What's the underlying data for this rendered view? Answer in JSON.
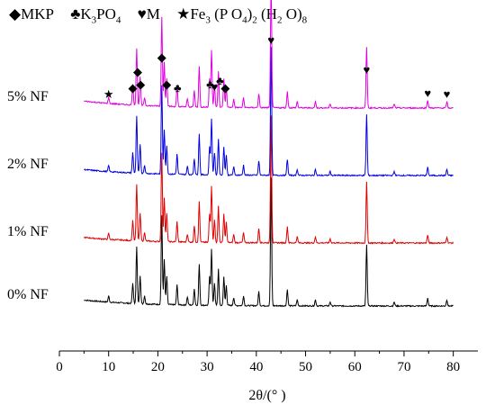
{
  "chart_data": {
    "type": "line",
    "xlabel": "2θ/(° )",
    "xlim": [
      0,
      85
    ],
    "ticks": [
      0,
      10,
      20,
      30,
      40,
      50,
      60,
      70,
      80
    ],
    "tick_labels": [
      "0",
      "10",
      "20",
      "30",
      "40",
      "50",
      "60",
      "70",
      "80"
    ],
    "legend": [
      {
        "symbol": "◆",
        "label": "MKP"
      },
      {
        "symbol": "♣",
        "label": "K3PO4"
      },
      {
        "symbol": "♥",
        "label": "M"
      },
      {
        "symbol": "★",
        "label": "Fe3 (P O4)2 (H2 O)8"
      }
    ],
    "series": [
      {
        "name": "0% NF",
        "color": "#000000",
        "baseline": 0,
        "slope_level": 3.0
      },
      {
        "name": "1% NF",
        "color": "#e00000",
        "baseline": 70,
        "slope_level": 2.8
      },
      {
        "name": "2% NF",
        "color": "#0000e0",
        "baseline": 145,
        "slope_level": 3.0
      },
      {
        "name": "5% NF",
        "color": "#e000e0",
        "baseline": 220,
        "slope_level": 3.5
      }
    ],
    "peaks": [
      {
        "x": 10.0,
        "h": 3
      },
      {
        "x": 14.9,
        "h": 10
      },
      {
        "x": 15.7,
        "h": 28
      },
      {
        "x": 16.4,
        "h": 14
      },
      {
        "x": 17.3,
        "h": 4
      },
      {
        "x": 20.8,
        "h": 44
      },
      {
        "x": 21.3,
        "h": 22
      },
      {
        "x": 21.8,
        "h": 14
      },
      {
        "x": 23.9,
        "h": 10
      },
      {
        "x": 26.0,
        "h": 4
      },
      {
        "x": 27.4,
        "h": 8
      },
      {
        "x": 28.4,
        "h": 20
      },
      {
        "x": 30.5,
        "h": 14
      },
      {
        "x": 30.9,
        "h": 28
      },
      {
        "x": 31.5,
        "h": 11
      },
      {
        "x": 32.3,
        "h": 18
      },
      {
        "x": 33.4,
        "h": 14
      },
      {
        "x": 33.9,
        "h": 10
      },
      {
        "x": 35.4,
        "h": 4
      },
      {
        "x": 37.4,
        "h": 5
      },
      {
        "x": 40.5,
        "h": 7
      },
      {
        "x": 43.0,
        "h": 63
      },
      {
        "x": 46.3,
        "h": 8
      },
      {
        "x": 48.3,
        "h": 3
      },
      {
        "x": 52.0,
        "h": 3
      },
      {
        "x": 55.0,
        "h": 2
      },
      {
        "x": 62.4,
        "h": 30
      },
      {
        "x": 68.0,
        "h": 2
      },
      {
        "x": 74.8,
        "h": 4
      },
      {
        "x": 78.7,
        "h": 3
      }
    ],
    "markers_5pct": [
      {
        "x": 10.0,
        "symbol": "★"
      },
      {
        "x": 14.9,
        "symbol": "◆"
      },
      {
        "x": 15.9,
        "symbol": "◆"
      },
      {
        "x": 16.5,
        "symbol": "◆"
      },
      {
        "x": 20.8,
        "symbol": "◆"
      },
      {
        "x": 21.8,
        "symbol": "◆"
      },
      {
        "x": 24.0,
        "symbol": "♣"
      },
      {
        "x": 30.6,
        "symbol": "♣"
      },
      {
        "x": 31.5,
        "symbol": "♥"
      },
      {
        "x": 32.6,
        "symbol": "♣"
      },
      {
        "x": 33.7,
        "symbol": "◆"
      },
      {
        "x": 43.0,
        "symbol": "♥"
      },
      {
        "x": 62.4,
        "symbol": "♥"
      },
      {
        "x": 74.8,
        "symbol": "♥"
      },
      {
        "x": 78.7,
        "symbol": "♥"
      }
    ]
  }
}
